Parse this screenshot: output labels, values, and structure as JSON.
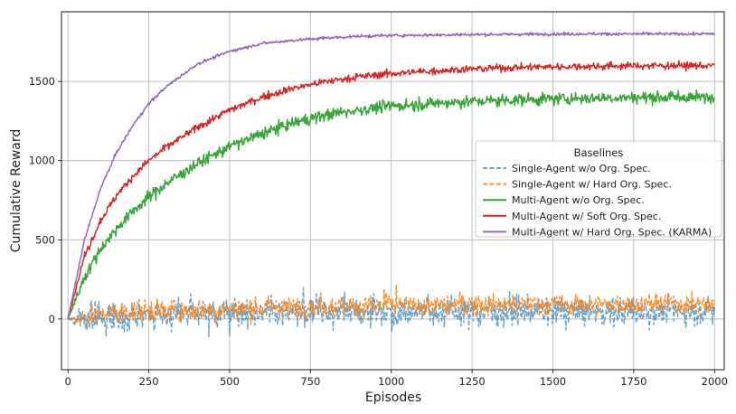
{
  "chart_data": {
    "type": "line",
    "xlabel": "Episodes",
    "ylabel": "Cumulative Reward",
    "xlim": [
      -20,
      2030
    ],
    "ylim": [
      -320,
      1940
    ],
    "xticks": [
      0,
      250,
      500,
      750,
      1000,
      1250,
      1500,
      1750,
      2000
    ],
    "yticks": [
      0,
      500,
      1000,
      1500
    ],
    "grid": true,
    "legend": {
      "title": "Baselines",
      "placement": "center-right"
    },
    "series": [
      {
        "name": "Single-Agent w/o Org. Spec.",
        "color": "#1f77b4",
        "style": "dashed",
        "alpha": 0.65,
        "x": [
          0,
          100,
          200,
          300,
          400,
          500,
          600,
          700,
          800,
          900,
          1000,
          1100,
          1200,
          1300,
          1400,
          1500,
          1600,
          1700,
          1800,
          1900,
          2000
        ],
        "y": [
          0,
          10,
          20,
          30,
          35,
          40,
          45,
          50,
          50,
          50,
          50,
          50,
          50,
          50,
          50,
          50,
          50,
          50,
          50,
          50,
          50
        ],
        "noise": 80
      },
      {
        "name": "Single-Agent w/ Hard Org. Spec.",
        "color": "#ff7f0e",
        "style": "dashed",
        "alpha": 0.85,
        "x": [
          0,
          100,
          200,
          300,
          400,
          500,
          600,
          700,
          800,
          900,
          1000,
          1100,
          1200,
          1300,
          1400,
          1500,
          1600,
          1700,
          1800,
          1900,
          2000
        ],
        "y": [
          0,
          35,
          50,
          55,
          60,
          65,
          70,
          75,
          80,
          82,
          85,
          85,
          88,
          90,
          90,
          90,
          92,
          92,
          95,
          95,
          95
        ],
        "noise": 55
      },
      {
        "name": "Multi-Agent w/o Org. Spec.",
        "color": "#2ca02c",
        "style": "solid",
        "alpha": 0.95,
        "x": [
          0,
          50,
          100,
          150,
          200,
          250,
          300,
          400,
          500,
          600,
          700,
          800,
          900,
          1000,
          1200,
          1400,
          1600,
          1800,
          2000
        ],
        "y": [
          0,
          260,
          440,
          570,
          680,
          770,
          850,
          980,
          1090,
          1170,
          1240,
          1290,
          1320,
          1345,
          1370,
          1385,
          1395,
          1400,
          1400
        ],
        "noise": 32
      },
      {
        "name": "Multi-Agent w/ Soft Org. Spec.",
        "color": "#d62728",
        "style": "solid",
        "alpha": 1,
        "x": [
          0,
          50,
          100,
          150,
          200,
          250,
          300,
          400,
          500,
          600,
          700,
          800,
          900,
          1000,
          1200,
          1400,
          1600,
          1800,
          2000
        ],
        "y": [
          0,
          390,
          620,
          780,
          900,
          1000,
          1080,
          1210,
          1320,
          1400,
          1460,
          1500,
          1530,
          1550,
          1575,
          1590,
          1595,
          1600,
          1600
        ],
        "noise": 20
      },
      {
        "name": "Multi-Agent w/ Hard Org. Spec. (KARMA)",
        "color": "#9467bd",
        "style": "solid",
        "alpha": 1,
        "x": [
          0,
          50,
          100,
          150,
          200,
          250,
          300,
          400,
          500,
          600,
          700,
          800,
          900,
          1000,
          1200,
          1400,
          1600,
          1800,
          2000
        ],
        "y": [
          0,
          490,
          820,
          1050,
          1220,
          1360,
          1460,
          1610,
          1690,
          1740,
          1760,
          1775,
          1785,
          1790,
          1795,
          1798,
          1800,
          1800,
          1800
        ],
        "noise": 8
      }
    ]
  }
}
